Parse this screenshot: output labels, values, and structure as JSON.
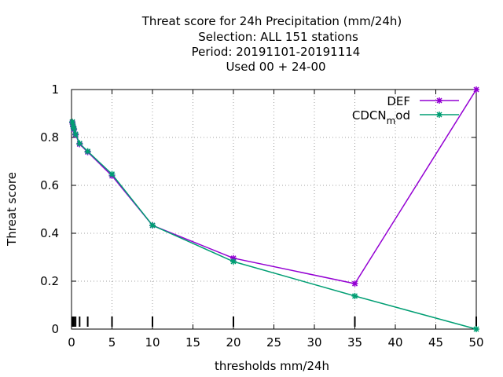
{
  "chart_data": {
    "type": "line",
    "title_lines": [
      "Threat score  for 24h Precipitation (mm/24h)",
      "Selection: ALL    151 stations",
      "Period: 20191101-20191114",
      "Used  00 + 24-00"
    ],
    "xlabel": "thresholds mm/24h",
    "ylabel": "Threat score",
    "xlim": [
      0,
      50
    ],
    "ylim": [
      0,
      1
    ],
    "xticks": [
      0,
      5,
      10,
      15,
      20,
      25,
      30,
      35,
      40,
      45,
      50
    ],
    "yticks": [
      0,
      0.2,
      0.4,
      0.6,
      0.8,
      1
    ],
    "xtick_labels": [
      "0",
      "5",
      "10",
      "15",
      "20",
      "25",
      "30",
      "35",
      "40",
      "45",
      "50"
    ],
    "ytick_labels": [
      "0",
      "0.2",
      "0.4",
      "0.6",
      "0.8",
      "1"
    ],
    "grid": true,
    "legend_position": "top-right",
    "threshold_markers": [
      0.1,
      0.2,
      0.3,
      0.5,
      1,
      2,
      5,
      10,
      20,
      35,
      50
    ],
    "series": [
      {
        "name": "DEF",
        "color": "#9400d3",
        "x": [
          0.1,
          0.2,
          0.3,
          0.5,
          1,
          2,
          5,
          10,
          20,
          35,
          50
        ],
        "y": [
          0.862,
          0.845,
          0.833,
          0.811,
          0.772,
          0.739,
          0.64,
          0.433,
          0.296,
          0.19,
          1.0
        ]
      },
      {
        "name_main": "CDCN",
        "name_sub": "m",
        "name_rest": "od",
        "color": "#009e73",
        "x": [
          0.1,
          0.2,
          0.3,
          0.5,
          1,
          2,
          5,
          10,
          20,
          35,
          50
        ],
        "y": [
          0.865,
          0.848,
          0.836,
          0.814,
          0.775,
          0.742,
          0.647,
          0.433,
          0.282,
          0.138,
          0.0
        ]
      }
    ]
  }
}
